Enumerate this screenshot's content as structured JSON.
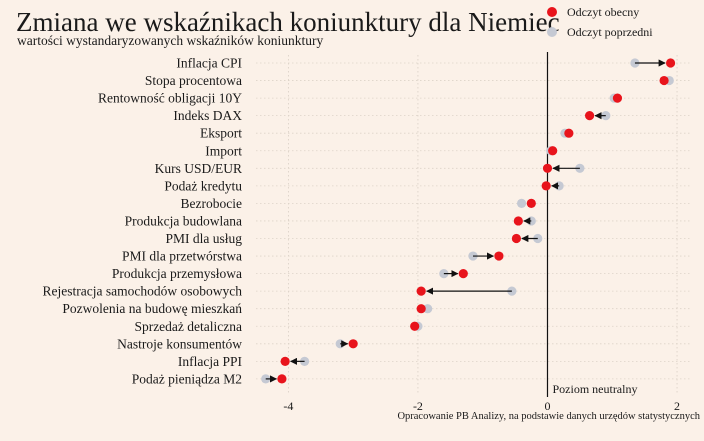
{
  "title": "Zmiana we wskaźnikach koniunktury dla Niemiec",
  "subtitle": "wartości wystandaryzowanych wskaźników koniunktury",
  "legend": [
    {
      "label": "Odczyt obecny",
      "color": "#e8141c"
    },
    {
      "label": "Odczyt poprzedni",
      "color": "#c5c9d3"
    }
  ],
  "source": "Opracowanie PB Analizy, na podstawie danych urzędów statystycznych",
  "neutral_label": "Poziom neutralny",
  "chart_data": {
    "type": "dumbbell",
    "categories": [
      "Inflacja CPI",
      "Stopa procentowa",
      "Rentowność obligacji 10Y",
      "Indeks DAX",
      "Eksport",
      "Import",
      "Kurs USD/EUR",
      "Podaż kredytu",
      "Bezrobocie",
      "Produkcja budowlana",
      "PMI dla usług",
      "PMI dla przetwórstwa",
      "Produkcja przemysłowa",
      "Rejestracja samochodów osobowych",
      "Pozwolenia na budowę mieszkań",
      "Sprzedaż detaliczna",
      "Nastroje konsumentów",
      "Inflacja PPI",
      "Podaż pieniądza M2"
    ],
    "series": [
      {
        "name": "Odczyt obecny",
        "values": [
          1.9,
          1.8,
          1.08,
          0.65,
          0.33,
          0.08,
          0.0,
          -0.02,
          -0.25,
          -0.45,
          -0.48,
          -0.75,
          -1.3,
          -1.95,
          -1.95,
          -2.05,
          -3.0,
          -4.05,
          -4.1
        ]
      },
      {
        "name": "Odczyt poprzedni",
        "values": [
          1.35,
          1.88,
          1.03,
          0.9,
          0.27,
          0.05,
          0.5,
          0.18,
          -0.4,
          -0.25,
          -0.15,
          -1.15,
          -1.6,
          -0.55,
          -1.85,
          -2.0,
          -3.2,
          -3.75,
          -4.35
        ]
      }
    ],
    "xlim": [
      -4.5,
      2.2
    ],
    "xticks": [
      -4,
      -2,
      0,
      2
    ],
    "neutral_level": 0,
    "grid": true
  }
}
